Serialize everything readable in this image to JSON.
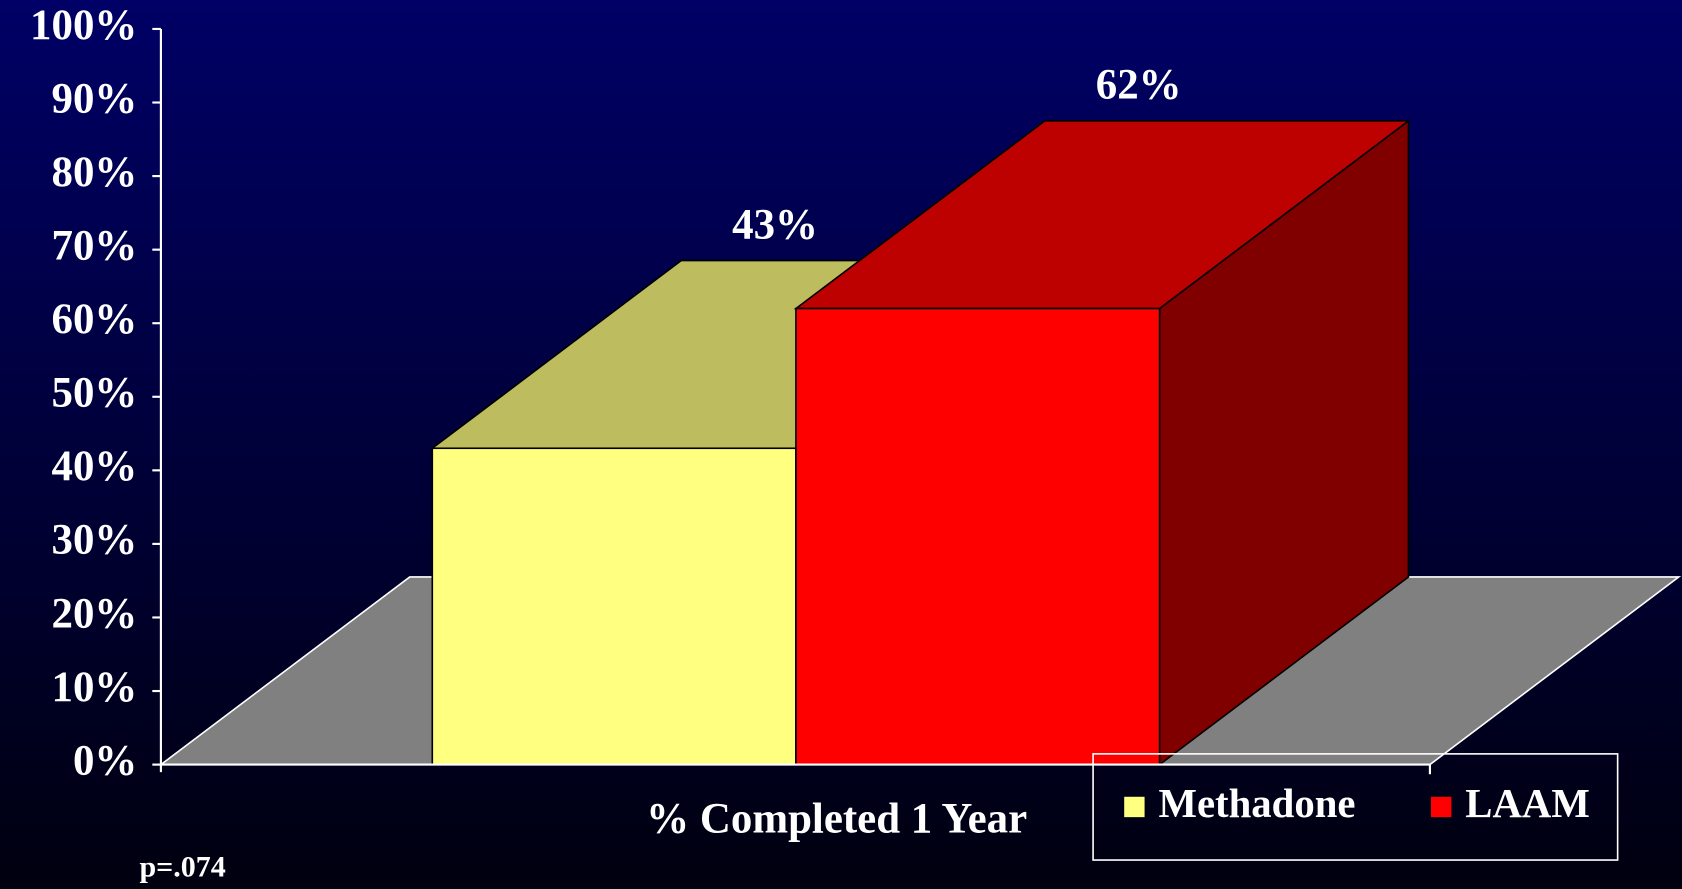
{
  "chart_data": {
    "type": "bar3d",
    "categories": [
      "% Completed 1 Year"
    ],
    "series": [
      {
        "name": "Methadone",
        "color": "#ffff80",
        "values": [
          43
        ],
        "value_labels": [
          "43%"
        ]
      },
      {
        "name": "LAAM",
        "color": "#ff0000",
        "values": [
          62
        ],
        "value_labels": [
          "62%"
        ]
      }
    ],
    "ylim": [
      0,
      100
    ],
    "yticks": [
      {
        "value": 0,
        "label": "0%"
      },
      {
        "value": 10,
        "label": "10%"
      },
      {
        "value": 20,
        "label": "20%"
      },
      {
        "value": 30,
        "label": "30%"
      },
      {
        "value": 40,
        "label": "40%"
      },
      {
        "value": 50,
        "label": "50%"
      },
      {
        "value": 60,
        "label": "60%"
      },
      {
        "value": 70,
        "label": "70%"
      },
      {
        "value": 80,
        "label": "80%"
      },
      {
        "value": 90,
        "label": "90%"
      },
      {
        "value": 100,
        "label": "100%"
      }
    ],
    "legend": "bottom-right",
    "annotation": "p=.074"
  }
}
